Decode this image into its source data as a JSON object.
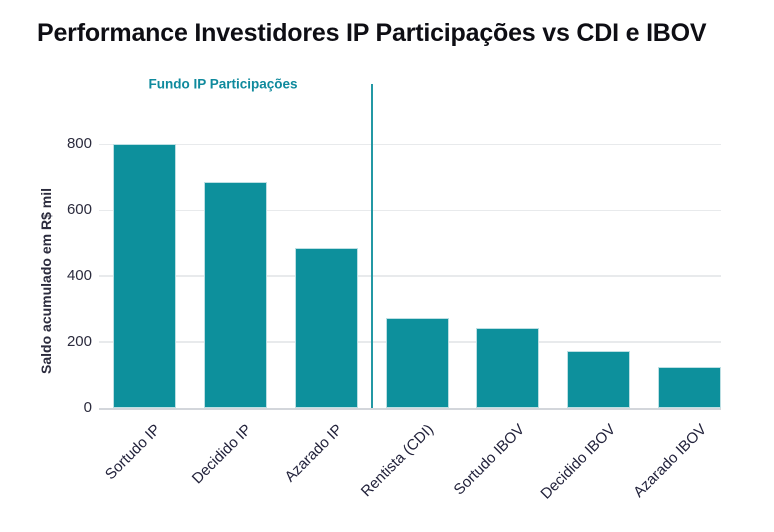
{
  "chart_data": {
    "type": "bar",
    "title": "Performance Investidores IP Participações vs CDI e IBOV",
    "categories": [
      "Sortudo IP",
      "Decidido IP",
      "Azarado IP",
      "Rentista (CDI)",
      "Sortudo IBOV",
      "Decidido IBOV",
      "Azarado IBOV"
    ],
    "values": [
      800,
      686,
      487,
      273,
      243,
      174,
      124
    ],
    "xlabel": "",
    "ylabel": "Saldo acumulado em R$ mil",
    "yticks": [
      0,
      200,
      400,
      600,
      800
    ],
    "ylim": [
      0,
      980
    ],
    "grid": true,
    "legend": false,
    "annotation": {
      "text": "Fundo IP Participações",
      "group_categories": [
        "Sortudo IP",
        "Decidido IP",
        "Azarado IP"
      ]
    },
    "separator": {
      "between": [
        "Azarado IP",
        "Rentista (CDI)"
      ]
    },
    "colors": {
      "bar": "#0D909C",
      "bar_edge": "#BCDFE3",
      "separator_line": "#2398A4",
      "annotation_text": "#0F8A9D",
      "title_text": "#0E0E14",
      "tick_text": "#2B2B3D",
      "xtick_text": "#21213A",
      "grid": "#E8EAEC",
      "baseline": "#D3D6DB"
    }
  }
}
